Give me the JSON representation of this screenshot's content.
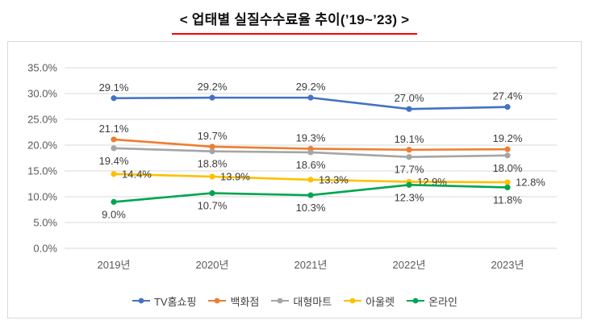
{
  "chart_data": {
    "type": "line",
    "title": "<  업태별 실질수수료율 추이(’19~’23)  >",
    "categories": [
      "2019년",
      "2020년",
      "2021년",
      "2022년",
      "2023년"
    ],
    "series": [
      {
        "name": "TV홈쇼핑",
        "color": "#4472C4",
        "values": [
          29.1,
          29.2,
          29.2,
          27.0,
          27.4
        ],
        "label_position": "above"
      },
      {
        "name": "백화점",
        "color": "#ED7D31",
        "values": [
          21.1,
          19.7,
          19.3,
          19.1,
          19.2
        ],
        "label_position": "above"
      },
      {
        "name": "대형마트",
        "color": "#A5A5A5",
        "values": [
          19.4,
          18.8,
          18.6,
          17.7,
          18.0
        ],
        "label_position": "below"
      },
      {
        "name": "아울렛",
        "color": "#FFC000",
        "values": [
          14.4,
          13.9,
          13.3,
          12.9,
          12.8
        ],
        "label_position": "right"
      },
      {
        "name": "온라인",
        "color": "#00A550",
        "values": [
          9.0,
          10.7,
          10.3,
          12.3,
          11.8
        ],
        "label_position": "below"
      }
    ],
    "xlabel": "",
    "ylabel": "",
    "ylim": [
      0,
      35
    ],
    "ytick_step": 5,
    "ytick_format": "percent1",
    "grid": true,
    "data_labels": true,
    "legend_position": "bottom",
    "accent_underline_color": "#FF0000",
    "gridline_color": "#D9D9D9",
    "axis_label_color": "#595959"
  }
}
